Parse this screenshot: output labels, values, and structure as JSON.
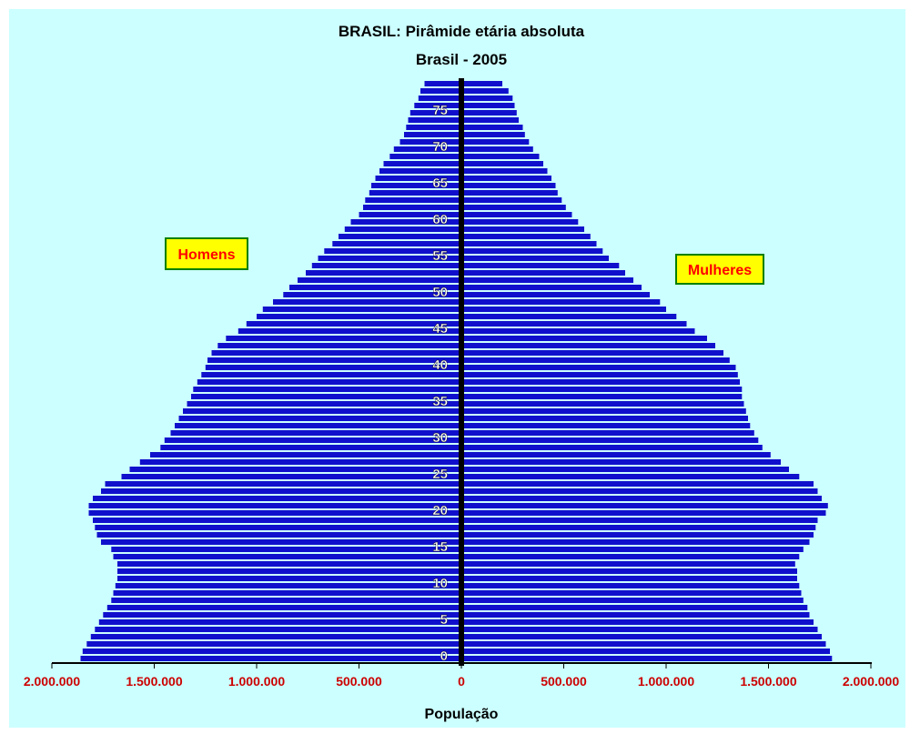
{
  "chart_data": {
    "type": "bar",
    "orientation": "horizontal",
    "title": "BRASIL: Pirâmide etária absoluta",
    "subtitle": "Brasil - 2005",
    "xlabel": "População",
    "xlim": [
      -2000000,
      2000000
    ],
    "x_ticks": [
      {
        "value": -2000000,
        "label": "2.000.000"
      },
      {
        "value": -1500000,
        "label": "1.500.000"
      },
      {
        "value": -1000000,
        "label": "1.000.000"
      },
      {
        "value": -500000,
        "label": "500.000"
      },
      {
        "value": 0,
        "label": "0"
      },
      {
        "value": 500000,
        "label": "500.000"
      },
      {
        "value": 1000000,
        "label": "1.000.000"
      },
      {
        "value": 1500000,
        "label": "1.500.000"
      },
      {
        "value": 2000000,
        "label": "2.000.000"
      }
    ],
    "y_ticks": [
      0,
      5,
      10,
      15,
      20,
      25,
      30,
      35,
      40,
      45,
      50,
      55,
      60,
      65,
      70,
      75
    ],
    "ages": [
      0,
      1,
      2,
      3,
      4,
      5,
      6,
      7,
      8,
      9,
      10,
      11,
      12,
      13,
      14,
      15,
      16,
      17,
      18,
      19,
      20,
      21,
      22,
      23,
      24,
      25,
      26,
      27,
      28,
      29,
      30,
      31,
      32,
      33,
      34,
      35,
      36,
      37,
      38,
      39,
      40,
      41,
      42,
      43,
      44,
      45,
      46,
      47,
      48,
      49,
      50,
      51,
      52,
      53,
      54,
      55,
      56,
      57,
      58,
      59,
      60,
      61,
      62,
      63,
      64,
      65,
      66,
      67,
      68,
      69,
      70,
      71,
      72,
      73,
      74,
      75,
      76,
      77,
      78,
      79
    ],
    "series": [
      {
        "name": "Homens",
        "values": [
          1860000,
          1850000,
          1830000,
          1810000,
          1790000,
          1770000,
          1750000,
          1730000,
          1710000,
          1700000,
          1690000,
          1680000,
          1680000,
          1680000,
          1700000,
          1710000,
          1760000,
          1780000,
          1790000,
          1800000,
          1820000,
          1820000,
          1800000,
          1760000,
          1740000,
          1660000,
          1620000,
          1570000,
          1520000,
          1470000,
          1450000,
          1420000,
          1400000,
          1380000,
          1360000,
          1340000,
          1320000,
          1310000,
          1290000,
          1270000,
          1250000,
          1240000,
          1220000,
          1190000,
          1150000,
          1090000,
          1050000,
          1000000,
          970000,
          920000,
          870000,
          840000,
          800000,
          760000,
          730000,
          700000,
          670000,
          630000,
          600000,
          570000,
          540000,
          500000,
          480000,
          470000,
          450000,
          440000,
          420000,
          400000,
          380000,
          350000,
          330000,
          300000,
          280000,
          270000,
          260000,
          250000,
          230000,
          210000,
          200000,
          180000
        ]
      },
      {
        "name": "Mulheres",
        "values": [
          1810000,
          1800000,
          1780000,
          1760000,
          1740000,
          1720000,
          1700000,
          1690000,
          1670000,
          1660000,
          1650000,
          1640000,
          1640000,
          1630000,
          1650000,
          1670000,
          1700000,
          1720000,
          1730000,
          1740000,
          1780000,
          1790000,
          1760000,
          1740000,
          1720000,
          1650000,
          1600000,
          1560000,
          1510000,
          1470000,
          1450000,
          1430000,
          1410000,
          1400000,
          1390000,
          1380000,
          1370000,
          1370000,
          1360000,
          1350000,
          1340000,
          1310000,
          1280000,
          1240000,
          1200000,
          1140000,
          1100000,
          1050000,
          1000000,
          970000,
          920000,
          880000,
          840000,
          800000,
          770000,
          720000,
          690000,
          660000,
          630000,
          600000,
          570000,
          540000,
          510000,
          490000,
          470000,
          460000,
          440000,
          420000,
          400000,
          380000,
          350000,
          330000,
          310000,
          300000,
          280000,
          270000,
          260000,
          250000,
          230000,
          200000
        ]
      }
    ],
    "annotations": [
      {
        "text": "Homens",
        "side": "left"
      },
      {
        "text": "Mulheres",
        "side": "right"
      }
    ],
    "colors": {
      "plot_background": "#ccffff",
      "bar": "#1010cc",
      "axis": "#000000",
      "tick_label_x": "#cc0000",
      "tick_label_y": "#ffffff",
      "title": "#000000",
      "annotation_text": "#ff0000",
      "annotation_fill": "#ffff00",
      "annotation_border": "#008000"
    },
    "grid": false
  }
}
